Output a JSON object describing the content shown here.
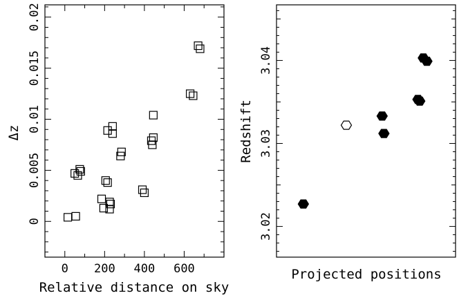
{
  "chart_data": [
    {
      "type": "scatter",
      "xlabel": "Relative distance on sky",
      "ylabel": "Δz",
      "xlim": [
        -100,
        800
      ],
      "ylim": [
        -0.0035,
        0.0212
      ],
      "xticks": [
        0,
        200,
        400,
        600
      ],
      "yticks": [
        0,
        0.005,
        0.01,
        0.015,
        0.02
      ],
      "ytick_labels": [
        "0",
        "0.005",
        "0.01",
        "0.015",
        "0.02"
      ],
      "marker": "open-square",
      "grid": false,
      "x": [
        15,
        50,
        55,
        65,
        75,
        80,
        185,
        195,
        205,
        215,
        215,
        225,
        225,
        230,
        240,
        240,
        280,
        285,
        390,
        400,
        435,
        440,
        445,
        445,
        630,
        645,
        670,
        680
      ],
      "y": [
        0.0004,
        0.0047,
        0.0005,
        0.0045,
        0.0051,
        0.0049,
        0.0022,
        0.0013,
        0.004,
        0.0038,
        0.0089,
        0.0019,
        0.0012,
        0.0017,
        0.0093,
        0.0086,
        0.0064,
        0.0068,
        0.0031,
        0.0028,
        0.0079,
        0.0075,
        0.0082,
        0.0104,
        0.0125,
        0.0123,
        0.0172,
        0.0169
      ]
    },
    {
      "type": "scatter",
      "xlabel": "Projected positions",
      "ylabel": "Redshift",
      "xlim": [
        0,
        1
      ],
      "ylim": [
        3.0163,
        3.0467
      ],
      "yticks": [
        3.02,
        3.025,
        3.03,
        3.035,
        3.04,
        3.045
      ],
      "ytick_labels": [
        "3.02",
        "",
        "3.03",
        "",
        "3.04",
        ""
      ],
      "marker": "hexagon",
      "grid": false,
      "points": [
        {
          "x": 0.15,
          "y": 3.0227,
          "filled": true
        },
        {
          "x": 0.39,
          "y": 3.0322,
          "filled": false
        },
        {
          "x": 0.59,
          "y": 3.0333,
          "filled": true
        },
        {
          "x": 0.6,
          "y": 3.0312,
          "filled": true
        },
        {
          "x": 0.79,
          "y": 3.0353,
          "filled": true
        },
        {
          "x": 0.8,
          "y": 3.0351,
          "filled": true
        },
        {
          "x": 0.82,
          "y": 3.0403,
          "filled": true
        },
        {
          "x": 0.84,
          "y": 3.0399,
          "filled": true
        }
      ]
    }
  ]
}
